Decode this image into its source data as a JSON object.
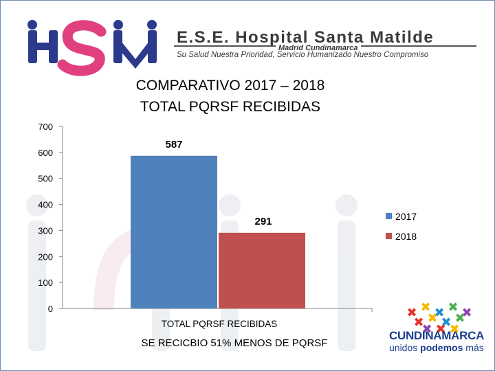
{
  "header": {
    "org_name": "E.S.E. Hospital Santa Matilde",
    "org_city": "Madrid Cundinamarca",
    "org_motto": "Su Salud Nuestra Prioridad, Servicio Humanizado Nuestro Compromiso",
    "logo_letters": "HSM",
    "logo_colors": {
      "blue": "#2b3a8c",
      "pink": "#e0407d"
    }
  },
  "chart_data": {
    "type": "bar",
    "title": [
      "COMPARATIVO 2017 – 2018",
      "TOTAL PQRSF RECIBIDAS"
    ],
    "categories": [
      "TOTAL PQRSF RECIBIDAS"
    ],
    "series": [
      {
        "name": "2017",
        "values": [
          587
        ],
        "color": "#4f81bd"
      },
      {
        "name": "2018",
        "values": [
          291
        ],
        "color": "#c0504d"
      }
    ],
    "ylim": [
      0,
      700
    ],
    "yticks": [
      0,
      100,
      200,
      300,
      400,
      500,
      600,
      700
    ],
    "data_labels": [
      "587",
      "291"
    ],
    "xlabel": "",
    "ylabel": "",
    "grid": false,
    "legend_position": "right"
  },
  "footnote": "SE RECICBIO 51% MENOS DE PQRSF",
  "footer_logo": {
    "name": "CUNDINAMARCA",
    "tagline_light": "unidos ",
    "tagline_bold": "podemos",
    "tagline_end": " más",
    "colors": [
      "#e63329",
      "#f6b800",
      "#1d8fd1",
      "#4caf50",
      "#8e44ad"
    ]
  }
}
